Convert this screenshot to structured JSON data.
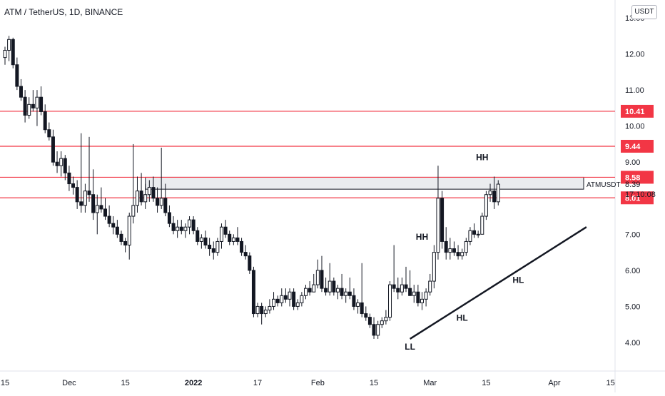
{
  "header": {
    "title": "ATM / TetherUS, 1D, BINANCE",
    "currency_button": "USDT"
  },
  "colors": {
    "bull": "#131722",
    "bear": "#131722",
    "level": "#f23645",
    "grid": "#f0f3fa",
    "zone": "#9598a1"
  },
  "chart_data": {
    "type": "candlestick",
    "symbol": "ATMUSDT",
    "ylim": [
      3.55,
      13.0
    ],
    "y_ticks": [
      "4.00",
      "5.00",
      "6.00",
      "7.00",
      "8.00",
      "9.00",
      "10.00",
      "11.00",
      "12.00",
      "13.00"
    ],
    "x_ticks": [
      {
        "label": "15",
        "day": 0
      },
      {
        "label": "Dec",
        "day": 16
      },
      {
        "label": "15",
        "day": 30
      },
      {
        "label": "2022",
        "day": 47
      },
      {
        "label": "17",
        "day": 63
      },
      {
        "label": "Feb",
        "day": 78
      },
      {
        "label": "15",
        "day": 92
      },
      {
        "label": "Mar",
        "day": 106
      },
      {
        "label": "15",
        "day": 120
      },
      {
        "label": "Apr",
        "day": 137
      },
      {
        "label": "15",
        "day": 151
      }
    ],
    "levels": [
      {
        "value": 10.41,
        "label": "10.41"
      },
      {
        "value": 9.44,
        "label": "9.44"
      },
      {
        "value": 8.58,
        "label": "8.58"
      },
      {
        "value": 8.01,
        "label": "8.01"
      }
    ],
    "zone": {
      "from": 8.25,
      "to": 8.58,
      "start_day": 35
    },
    "last": {
      "value": 8.39,
      "symbol": "ATMUSDT",
      "price": "8.39",
      "countdown": "17:10:08"
    },
    "trendline": {
      "start_day": 101,
      "start_price": 4.1,
      "end_day": 145,
      "end_price": 7.2
    },
    "annotations": [
      {
        "text": "LL",
        "day": 101,
        "price": 3.8
      },
      {
        "text": "HH",
        "day": 104,
        "price": 6.85
      },
      {
        "text": "HL",
        "day": 114,
        "price": 4.6
      },
      {
        "text": "HH",
        "day": 119,
        "price": 9.05
      },
      {
        "text": "HL",
        "day": 128,
        "price": 5.65
      }
    ],
    "candles": [
      [
        11.9,
        12.2,
        11.7,
        12.1
      ],
      [
        12.1,
        12.5,
        11.8,
        12.4
      ],
      [
        12.4,
        12.45,
        11.6,
        11.7
      ],
      [
        11.7,
        11.9,
        11.0,
        11.1
      ],
      [
        11.1,
        11.3,
        10.7,
        10.8
      ],
      [
        10.8,
        11.0,
        10.1,
        10.3
      ],
      [
        10.3,
        10.8,
        10.2,
        10.6
      ],
      [
        10.6,
        11.0,
        10.4,
        10.5
      ],
      [
        10.5,
        11.0,
        10.0,
        10.8
      ],
      [
        10.8,
        11.1,
        10.3,
        10.4
      ],
      [
        10.4,
        10.6,
        9.8,
        9.9
      ],
      [
        9.9,
        10.1,
        9.6,
        9.7
      ],
      [
        9.7,
        9.9,
        8.9,
        9.0
      ],
      [
        9.0,
        9.3,
        8.7,
        8.9
      ],
      [
        8.9,
        9.3,
        8.6,
        9.1
      ],
      [
        9.1,
        9.2,
        8.5,
        8.7
      ],
      [
        8.7,
        8.9,
        8.2,
        8.4
      ],
      [
        8.4,
        8.6,
        8.1,
        8.3
      ],
      [
        8.3,
        8.5,
        7.7,
        7.9
      ],
      [
        7.9,
        9.8,
        7.6,
        7.8
      ],
      [
        7.8,
        8.4,
        7.6,
        8.2
      ],
      [
        8.2,
        9.7,
        7.9,
        8.1
      ],
      [
        8.1,
        8.8,
        7.4,
        7.6
      ],
      [
        7.6,
        8.1,
        7.0,
        7.8
      ],
      [
        7.8,
        8.3,
        7.6,
        7.7
      ],
      [
        7.7,
        8.0,
        7.4,
        7.5
      ],
      [
        7.5,
        7.8,
        7.2,
        7.3
      ],
      [
        7.3,
        7.5,
        7.0,
        7.2
      ],
      [
        7.2,
        7.4,
        6.9,
        7.0
      ],
      [
        7.0,
        7.1,
        6.7,
        6.8
      ],
      [
        6.8,
        6.9,
        6.5,
        6.7
      ],
      [
        6.7,
        7.6,
        6.3,
        7.5
      ],
      [
        7.5,
        9.5,
        7.3,
        7.8
      ],
      [
        7.8,
        8.6,
        7.6,
        8.2
      ],
      [
        8.2,
        8.7,
        7.8,
        7.9
      ],
      [
        7.9,
        8.4,
        7.7,
        8.1
      ],
      [
        8.1,
        8.5,
        7.9,
        8.3
      ],
      [
        8.3,
        8.6,
        7.9,
        8.0
      ],
      [
        8.0,
        8.3,
        7.6,
        7.8
      ],
      [
        7.8,
        9.4,
        7.7,
        8.0
      ],
      [
        8.0,
        8.4,
        7.5,
        7.6
      ],
      [
        7.6,
        7.8,
        7.2,
        7.3
      ],
      [
        7.3,
        7.5,
        7.0,
        7.1
      ],
      [
        7.1,
        7.4,
        6.9,
        7.2
      ],
      [
        7.2,
        7.4,
        7.0,
        7.1
      ],
      [
        7.1,
        7.3,
        6.9,
        7.2
      ],
      [
        7.2,
        7.5,
        7.0,
        7.4
      ],
      [
        7.4,
        7.5,
        7.0,
        7.1
      ],
      [
        7.1,
        7.2,
        6.7,
        6.8
      ],
      [
        6.8,
        7.0,
        6.6,
        6.9
      ],
      [
        6.9,
        7.1,
        6.6,
        6.7
      ],
      [
        6.7,
        6.9,
        6.4,
        6.6
      ],
      [
        6.6,
        6.8,
        6.3,
        6.5
      ],
      [
        6.5,
        6.9,
        6.4,
        6.8
      ],
      [
        6.8,
        7.3,
        6.6,
        7.2
      ],
      [
        7.2,
        7.4,
        6.9,
        7.0
      ],
      [
        7.0,
        7.1,
        6.7,
        6.8
      ],
      [
        6.8,
        7.0,
        6.7,
        6.9
      ],
      [
        6.9,
        7.2,
        6.7,
        6.8
      ],
      [
        6.8,
        6.9,
        6.4,
        6.5
      ],
      [
        6.5,
        6.7,
        6.3,
        6.4
      ],
      [
        6.4,
        6.5,
        5.9,
        6.0
      ],
      [
        6.0,
        6.1,
        4.7,
        4.8
      ],
      [
        4.8,
        5.1,
        4.7,
        5.0
      ],
      [
        5.0,
        5.1,
        4.5,
        4.8
      ],
      [
        4.8,
        5.0,
        4.7,
        4.9
      ],
      [
        4.9,
        5.2,
        4.8,
        5.0
      ],
      [
        5.0,
        5.4,
        4.9,
        5.2
      ],
      [
        5.2,
        5.3,
        5.0,
        5.1
      ],
      [
        5.1,
        5.5,
        5.0,
        5.3
      ],
      [
        5.3,
        5.5,
        5.1,
        5.2
      ],
      [
        5.2,
        5.5,
        5.0,
        5.4
      ],
      [
        5.4,
        5.5,
        4.9,
        5.0
      ],
      [
        5.0,
        5.2,
        4.9,
        5.1
      ],
      [
        5.1,
        5.4,
        5.0,
        5.3
      ],
      [
        5.3,
        5.6,
        5.2,
        5.5
      ],
      [
        5.5,
        5.7,
        5.3,
        5.4
      ],
      [
        5.4,
        5.9,
        5.4,
        5.6
      ],
      [
        5.6,
        6.3,
        5.5,
        6.0
      ],
      [
        6.0,
        6.4,
        5.4,
        5.5
      ],
      [
        5.5,
        5.8,
        5.3,
        5.4
      ],
      [
        5.4,
        6.2,
        5.3,
        5.7
      ],
      [
        5.7,
        5.8,
        5.3,
        5.4
      ],
      [
        5.4,
        5.6,
        5.2,
        5.5
      ],
      [
        5.5,
        5.9,
        5.2,
        5.3
      ],
      [
        5.3,
        5.5,
        5.1,
        5.4
      ],
      [
        5.4,
        5.8,
        5.2,
        5.3
      ],
      [
        5.3,
        5.5,
        4.9,
        5.0
      ],
      [
        5.0,
        5.2,
        4.8,
        5.1
      ],
      [
        5.1,
        6.2,
        4.7,
        4.8
      ],
      [
        4.8,
        5.0,
        4.6,
        4.7
      ],
      [
        4.7,
        4.8,
        4.4,
        4.5
      ],
      [
        4.5,
        4.7,
        4.1,
        4.2
      ],
      [
        4.2,
        4.6,
        4.1,
        4.5
      ],
      [
        4.5,
        4.7,
        4.4,
        4.6
      ],
      [
        4.6,
        4.9,
        4.5,
        4.7
      ],
      [
        4.7,
        5.7,
        4.6,
        5.6
      ],
      [
        5.6,
        6.7,
        5.4,
        5.5
      ],
      [
        5.5,
        5.8,
        5.2,
        5.4
      ],
      [
        5.4,
        5.8,
        5.3,
        5.6
      ],
      [
        5.6,
        6.1,
        5.4,
        5.5
      ],
      [
        5.5,
        6.0,
        5.3,
        5.3
      ],
      [
        5.3,
        5.6,
        5.1,
        5.4
      ],
      [
        5.4,
        5.6,
        5.0,
        5.1
      ],
      [
        5.1,
        5.4,
        4.9,
        5.2
      ],
      [
        5.2,
        5.5,
        5.0,
        5.4
      ],
      [
        5.4,
        5.9,
        5.3,
        5.7
      ],
      [
        5.7,
        6.7,
        5.5,
        6.5
      ],
      [
        6.5,
        8.9,
        6.3,
        8.0
      ],
      [
        8.0,
        8.2,
        6.6,
        6.8
      ],
      [
        6.8,
        7.2,
        6.3,
        6.5
      ],
      [
        6.5,
        6.9,
        6.3,
        6.6
      ],
      [
        6.6,
        6.8,
        6.4,
        6.5
      ],
      [
        6.5,
        6.7,
        6.3,
        6.4
      ],
      [
        6.4,
        6.6,
        6.3,
        6.5
      ],
      [
        6.5,
        6.9,
        6.4,
        6.8
      ],
      [
        6.8,
        7.2,
        6.7,
        7.1
      ],
      [
        7.1,
        7.3,
        6.9,
        7.0
      ],
      [
        7.0,
        7.1,
        6.9,
        7.0
      ],
      [
        7.0,
        7.6,
        7.0,
        7.5
      ],
      [
        7.5,
        8.2,
        7.4,
        8.1
      ],
      [
        8.1,
        8.4,
        7.9,
        8.2
      ],
      [
        8.2,
        8.6,
        7.7,
        7.9
      ],
      [
        7.9,
        8.5,
        7.8,
        8.39
      ]
    ]
  }
}
